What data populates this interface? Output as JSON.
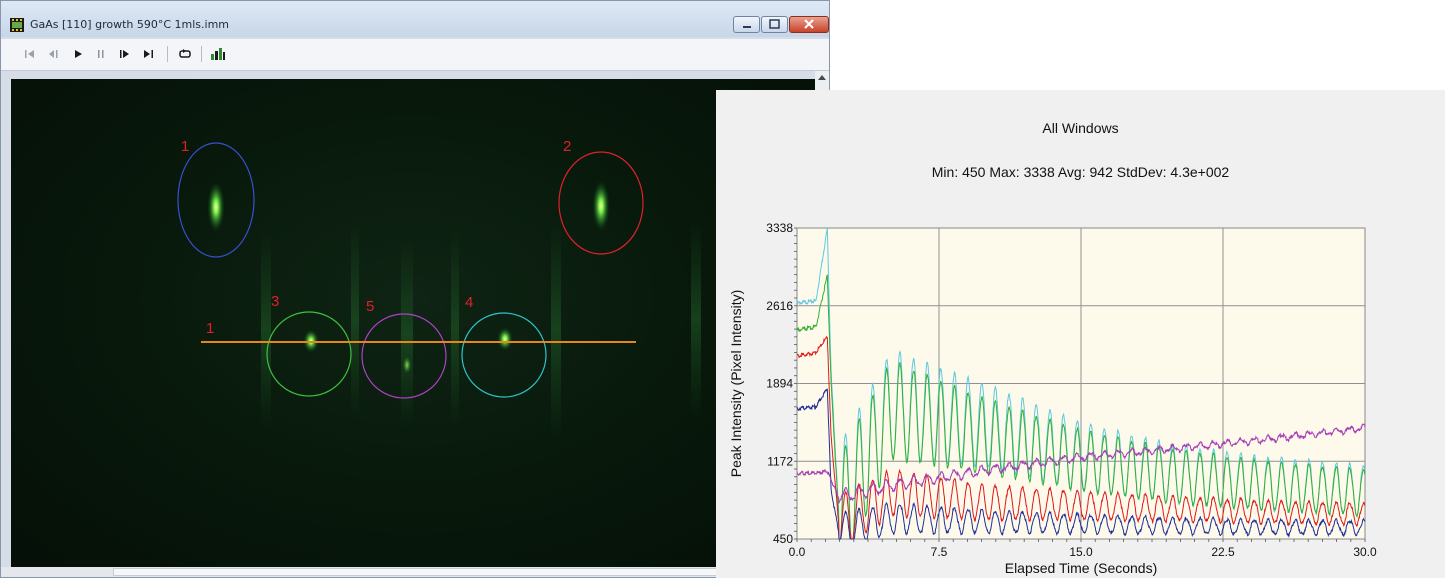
{
  "window": {
    "title": "GaAs [110] growth 590°C 1mls.imm"
  },
  "toolbar": {
    "buttons": [
      {
        "name": "first-frame",
        "icon": "skip-to-start-icon"
      },
      {
        "name": "step-back",
        "icon": "step-back-icon"
      },
      {
        "name": "play",
        "icon": "play-icon"
      },
      {
        "name": "pause",
        "icon": "pause-icon"
      },
      {
        "name": "step-forward",
        "icon": "step-forward-icon"
      },
      {
        "name": "last-frame",
        "icon": "skip-to-end-icon"
      },
      {
        "name": "loop",
        "icon": "loop-icon"
      },
      {
        "name": "chart",
        "icon": "chart-icon"
      }
    ]
  },
  "overlay": {
    "regions": [
      {
        "label": "1",
        "color": "#3a4fd0"
      },
      {
        "label": "2",
        "color": "#e0202a"
      },
      {
        "label": "3",
        "color": "#3ec23e"
      },
      {
        "label": "5",
        "color": "#b040c8"
      },
      {
        "label": "4",
        "color": "#2ec4cc"
      }
    ],
    "line": {
      "label": "1",
      "color": "#e8861c"
    }
  },
  "chart": {
    "title": "All Windows",
    "stats": "Min: 450  Max: 3338  Avg: 942  StdDev: 4.3e+002"
  },
  "chart_data": {
    "type": "line",
    "title": "All Windows",
    "xlabel": "Elapsed Time (Seconds)",
    "ylabel": "Peak Intensity (Pixel Intensity)",
    "xlim": [
      0,
      30
    ],
    "ylim": [
      450,
      3338
    ],
    "x_ticks": [
      "0.0",
      "7.5",
      "15.0",
      "22.5",
      "30.0"
    ],
    "y_ticks": [
      "450",
      "1172",
      "1894",
      "2616",
      "3338"
    ],
    "grid": true,
    "background": "#fdfaeb",
    "series": [
      {
        "color": "#5ec8e0",
        "x": [
          0,
          1,
          1.6,
          1.8,
          2.2,
          5,
          10,
          15,
          20,
          25,
          30
        ],
        "y": [
          2640,
          2660,
          3338,
          2000,
          700,
          1700,
          1500,
          1220,
          1050,
          960,
          900
        ],
        "note": "oscillating"
      },
      {
        "color": "#33b033",
        "x": [
          0,
          1,
          1.6,
          1.8,
          2.2,
          5,
          10,
          15,
          20,
          25,
          30
        ],
        "y": [
          2390,
          2420,
          2900,
          1900,
          650,
          1650,
          1400,
          1180,
          1030,
          940,
          880
        ]
      },
      {
        "color": "#e01818",
        "x": [
          0,
          1,
          1.6,
          1.8,
          2.2,
          5,
          10,
          15,
          20,
          25,
          30
        ],
        "y": [
          2150,
          2180,
          2330,
          1400,
          600,
          880,
          790,
          760,
          730,
          700,
          680
        ]
      },
      {
        "color": "#1f2f9a",
        "x": [
          0,
          1,
          1.6,
          1.8,
          2.2,
          5,
          10,
          15,
          20,
          25,
          30
        ],
        "y": [
          1660,
          1680,
          1850,
          900,
          520,
          640,
          610,
          590,
          570,
          560,
          555
        ]
      },
      {
        "color": "#a63cb5",
        "x": [
          0,
          1,
          1.6,
          1.8,
          2.2,
          5,
          10,
          15,
          20,
          25,
          30
        ],
        "y": [
          1060,
          1060,
          1080,
          1000,
          840,
          950,
          1090,
          1210,
          1290,
          1380,
          1480
        ]
      }
    ]
  }
}
